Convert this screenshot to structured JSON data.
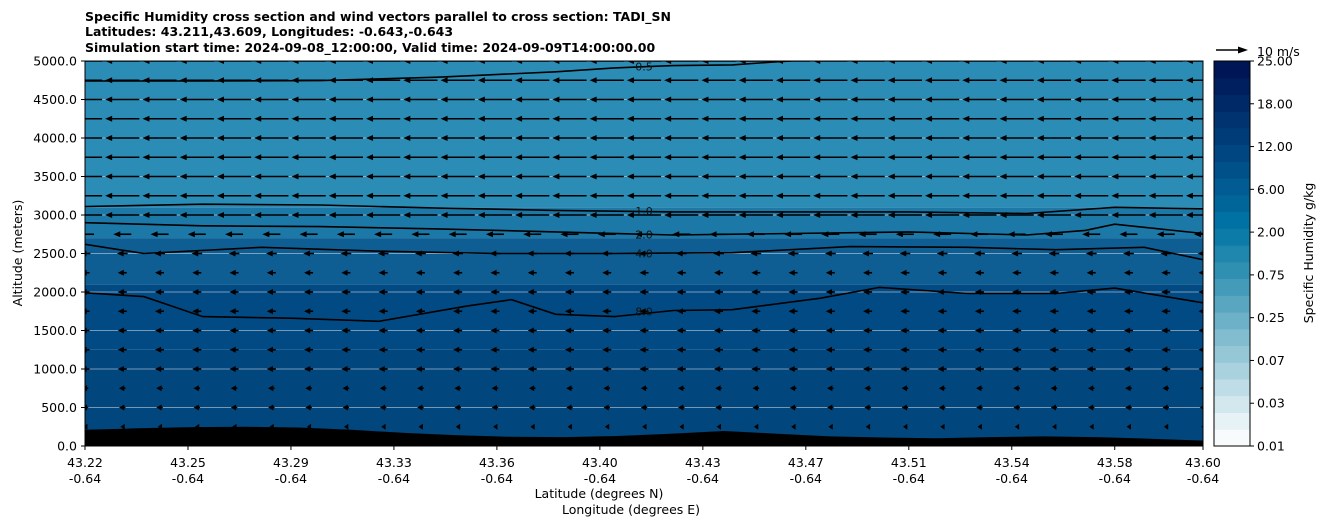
{
  "chart_data": {
    "type": "heatmap",
    "title_lines": [
      "Specific Humidity cross section and wind vectors parallel to cross section: TADI_SN",
      "Latitudes: 43.211,43.609, Longitudes: -0.643,-0.643",
      "Simulation start time: 2024-09-08_12:00:00, Valid time: 2024-09-09T14:00:00.00"
    ],
    "ylabel": "Altitude (meters)",
    "xlabel_lines": [
      "Latitude (degrees N)",
      "Longitude (degrees E)"
    ],
    "ylim": [
      0,
      5000
    ],
    "y_ticks": [
      "0.0",
      "500.0",
      "1000.0",
      "1500.0",
      "2000.0",
      "2500.0",
      "3000.0",
      "3500.0",
      "4000.0",
      "4500.0",
      "5000.0"
    ],
    "y_tick_values": [
      0,
      500,
      1000,
      1500,
      2000,
      2500,
      3000,
      3500,
      4000,
      4500,
      5000
    ],
    "x_ticks": [
      {
        "lat": "43.22",
        "lon": "-0.64"
      },
      {
        "lat": "43.25",
        "lon": "-0.64"
      },
      {
        "lat": "43.29",
        "lon": "-0.64"
      },
      {
        "lat": "43.33",
        "lon": "-0.64"
      },
      {
        "lat": "43.36",
        "lon": "-0.64"
      },
      {
        "lat": "43.40",
        "lon": "-0.64"
      },
      {
        "lat": "43.43",
        "lon": "-0.64"
      },
      {
        "lat": "43.47",
        "lon": "-0.64"
      },
      {
        "lat": "43.51",
        "lon": "-0.64"
      },
      {
        "lat": "43.54",
        "lon": "-0.64"
      },
      {
        "lat": "43.58",
        "lon": "-0.64"
      },
      {
        "lat": "43.60",
        "lon": "-0.64"
      }
    ],
    "x_tick_values": [
      43.22,
      43.255,
      43.29,
      43.325,
      43.36,
      43.395,
      43.43,
      43.465,
      43.5,
      43.535,
      43.57,
      43.6
    ],
    "xlim": [
      43.22,
      43.6
    ],
    "colorbar": {
      "label": "Specific Humidity g/kg",
      "tick_labels": [
        "0.01",
        "0.03",
        "0.07",
        "0.25",
        "0.75",
        "2.00",
        "6.00",
        "12.00",
        "18.00",
        "25.00"
      ],
      "colors": [
        "#f7fbfc",
        "#e6f2f5",
        "#d3e8ee",
        "#bfdde6",
        "#aad2de",
        "#96c7d7",
        "#81bccf",
        "#6db1c8",
        "#58a6c0",
        "#449bb9",
        "#3090b2",
        "#1f86ad",
        "#0d7ba8",
        "#0071a3",
        "#00669a",
        "#005c92",
        "#005189",
        "#004781",
        "#003d78",
        "#003370",
        "#002967",
        "#001f5f",
        "#001556"
      ]
    },
    "humidity_fill_bands": [
      {
        "from": 0,
        "to": 1250,
        "color": "#01467d"
      },
      {
        "from": 1250,
        "to": 2100,
        "color": "#024a83"
      },
      {
        "from": 2100,
        "to": 2700,
        "color": "#0f5e93"
      },
      {
        "from": 2700,
        "to": 3100,
        "color": "#1c78a6"
      },
      {
        "from": 3100,
        "to": 5000,
        "color": "#2b8db6"
      }
    ],
    "terrain_heights_m": [
      210,
      230,
      245,
      250,
      240,
      210,
      170,
      140,
      120,
      115,
      130,
      160,
      195,
      160,
      125,
      110,
      100,
      115,
      125,
      115,
      95,
      70
    ],
    "contour_levels": [
      {
        "label": "0.5",
        "label_x": 43.41,
        "label_y": 4930,
        "line": [
          [
            43.22,
            4740
          ],
          [
            43.26,
            4740
          ],
          [
            43.3,
            4745
          ],
          [
            43.34,
            4790
          ],
          [
            43.38,
            4860
          ],
          [
            43.4,
            4910
          ],
          [
            43.42,
            4940
          ],
          [
            43.44,
            4950
          ],
          [
            43.455,
            4990
          ],
          [
            43.46,
            5000
          ]
        ]
      },
      {
        "label": "1.0",
        "label_x": 43.41,
        "label_y": 3050,
        "line": [
          [
            43.22,
            3110
          ],
          [
            43.26,
            3140
          ],
          [
            43.3,
            3130
          ],
          [
            43.34,
            3090
          ],
          [
            43.38,
            3060
          ],
          [
            43.42,
            3040
          ],
          [
            43.46,
            3040
          ],
          [
            43.5,
            3040
          ],
          [
            43.54,
            3020
          ],
          [
            43.57,
            3100
          ],
          [
            43.6,
            3080
          ]
        ]
      },
      {
        "label": "2.0",
        "label_x": 43.41,
        "label_y": 2750,
        "line": [
          [
            43.22,
            2900
          ],
          [
            43.26,
            2860
          ],
          [
            43.3,
            2850
          ],
          [
            43.34,
            2820
          ],
          [
            43.38,
            2780
          ],
          [
            43.42,
            2740
          ],
          [
            43.46,
            2760
          ],
          [
            43.5,
            2780
          ],
          [
            43.54,
            2740
          ],
          [
            43.56,
            2800
          ],
          [
            43.57,
            2880
          ],
          [
            43.6,
            2760
          ]
        ]
      },
      {
        "label": "4.0",
        "label_x": 43.41,
        "label_y": 2500,
        "line": [
          [
            43.22,
            2620
          ],
          [
            43.24,
            2500
          ],
          [
            43.28,
            2580
          ],
          [
            43.32,
            2530
          ],
          [
            43.36,
            2500
          ],
          [
            43.4,
            2500
          ],
          [
            43.44,
            2510
          ],
          [
            43.48,
            2590
          ],
          [
            43.52,
            2580
          ],
          [
            43.55,
            2550
          ],
          [
            43.58,
            2580
          ],
          [
            43.6,
            2420
          ]
        ]
      },
      {
        "label": "8.0",
        "label_x": 43.41,
        "label_y": 1750,
        "line": [
          [
            43.22,
            1990
          ],
          [
            43.24,
            1940
          ],
          [
            43.26,
            1680
          ],
          [
            43.29,
            1660
          ],
          [
            43.32,
            1620
          ],
          [
            43.35,
            1820
          ],
          [
            43.365,
            1900
          ],
          [
            43.38,
            1710
          ],
          [
            43.4,
            1680
          ],
          [
            43.42,
            1760
          ],
          [
            43.44,
            1770
          ],
          [
            43.47,
            1920
          ],
          [
            43.49,
            2060
          ],
          [
            43.52,
            1980
          ],
          [
            43.55,
            1980
          ],
          [
            43.57,
            2050
          ],
          [
            43.6,
            1860
          ]
        ]
      }
    ],
    "quiver": {
      "reference_label": "10 m/s",
      "reference_speed": 10,
      "levels_m": [
        50,
        250,
        500,
        750,
        1000,
        1250,
        1500,
        1750,
        2000,
        2250,
        2500,
        2750,
        3000,
        3250,
        3500,
        3750,
        4000,
        4250,
        4500,
        4750,
        5000
      ],
      "u_by_level_ms": [
        -0.3,
        -1.0,
        -1.8,
        -1.8,
        -2.5,
        -2.5,
        -2.5,
        -2.5,
        -2.5,
        -2.5,
        -3.0,
        -5.0,
        -9.5,
        -9.5,
        -9.5,
        -9.5,
        -9.5,
        -9.5,
        -9.5,
        -9.5,
        -9.5
      ],
      "columns_per_row": 31
    }
  }
}
